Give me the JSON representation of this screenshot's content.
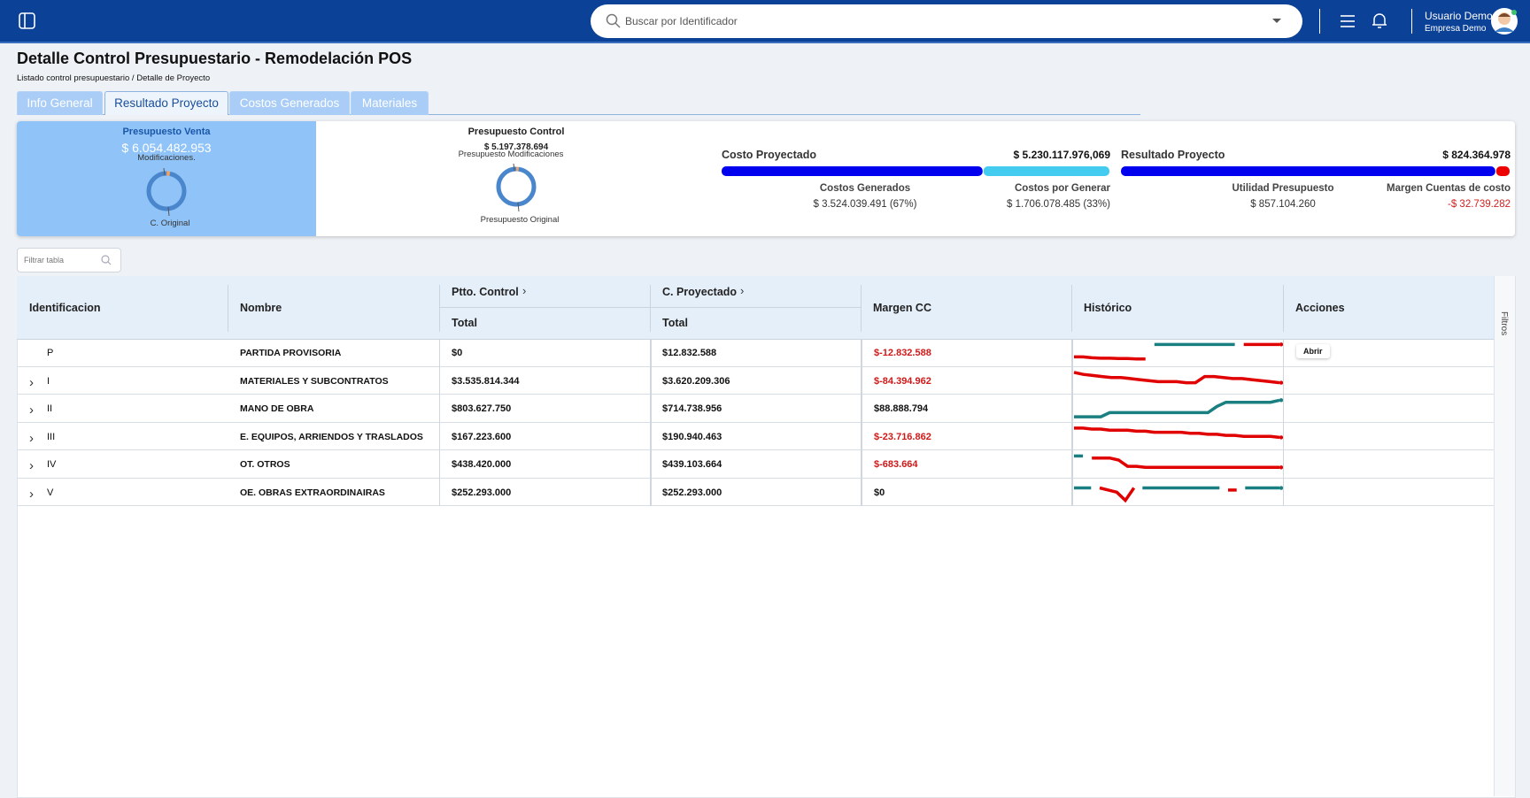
{
  "header": {
    "search_placeholder": "Buscar por Identificador",
    "user_name": "Usuario Demo",
    "company": "Empresa Demo"
  },
  "page": {
    "title": "Detalle Control Presupuestario - Remodelación POS",
    "breadcrumb": [
      "Listado control presupuestario",
      "Detalle de Proyecto"
    ],
    "breadcrumb_separator": "/",
    "tabs": [
      "Info General",
      "Resultado Proyecto",
      "Costos Generados",
      "Materiales"
    ],
    "active_tab": 1
  },
  "summary": {
    "venta": {
      "title": "Presupuesto Venta",
      "amount": "$ 6.054.482.953",
      "donut": [
        {
          "label": "Modificaciones.",
          "value": 3,
          "color": "#f0a060"
        },
        {
          "label": "C. Original",
          "value": 97,
          "color": "#4a86cc"
        }
      ]
    },
    "control": {
      "title": "Presupuesto Control",
      "amount": "$ 5.197.378.694",
      "donut": [
        {
          "label": "Presupuesto Modificaciones",
          "value": 2,
          "color": "#f0a060"
        },
        {
          "label": "Presupuesto Original",
          "value": 98,
          "color": "#4a86cc"
        }
      ]
    },
    "costo": {
      "title": "Costo Proyectado",
      "total": "$ 5.230.117.976,069",
      "segments": [
        {
          "label": "Costos Generados",
          "text": "$ 3.524.039.491 (67%)",
          "value": 3524039491,
          "color": "#0000ee"
        },
        {
          "label": "Costos por Generar",
          "text": "$ 1.706.078.485 (33%)",
          "value": 1706078485,
          "color": "#44ccf0"
        }
      ]
    },
    "resultado": {
      "title": "Resultado Proyecto",
      "total": "$ 824.364.978",
      "segments": [
        {
          "label": "Utilidad Presupuesto",
          "text": "$ 857.104.260",
          "value": 857104260,
          "color": "#0000ee"
        },
        {
          "label": "Margen Cuentas de costo",
          "text": "-$ 32.739.282",
          "value": -32739282,
          "color": "#ee0000",
          "text_color": "#d42020"
        }
      ]
    }
  },
  "filter": {
    "placeholder": "Filtrar tabla"
  },
  "table": {
    "columns": [
      "Identificacion",
      "Nombre",
      "Ptto. Control",
      "C. Proyectado",
      "Margen CC",
      "Histórico",
      "Acciones"
    ],
    "subcolumns": [
      "Total",
      "Total"
    ],
    "side_label": "Filtros",
    "rows": [
      {
        "id": "P",
        "name": "PARTIDA PROVISORIA",
        "ptto": "$0",
        "proyectado": "$12.832.588",
        "margen": "$-12.832.588",
        "negative": true,
        "expandable": false,
        "action": "Abrir",
        "historico": [
          {
            "color": "#e00000",
            "values": [
              3,
              3,
              2.6,
              2.4,
              2.4,
              2.2,
              2.2,
              2,
              2
            ]
          },
          {
            "color": "#1a7f80",
            "values": [
              9,
              9,
              9,
              9,
              9,
              9,
              9,
              9,
              9,
              9
            ]
          },
          {
            "color": "#e00000",
            "values": [
              9,
              9,
              9,
              9,
              9
            ]
          }
        ]
      },
      {
        "id": "I",
        "name": "MATERIALES Y SUBCONTRATOS",
        "ptto": "$3.535.814.344",
        "proyectado": "$3.620.209.306",
        "margen": "$-84.394.962",
        "negative": true,
        "expandable": true,
        "historico": [
          {
            "color": "#e00000",
            "values": [
              9,
              8,
              7.5,
              7,
              6.5,
              6.5,
              6,
              5.5,
              5,
              4.5,
              4.5,
              4.5,
              4,
              4,
              7,
              7,
              6.5,
              6,
              6,
              5.5,
              5,
              4.5,
              4
            ]
          }
        ]
      },
      {
        "id": "II",
        "name": "MANO DE OBRA",
        "ptto": "$803.627.750",
        "proyectado": "$714.738.956",
        "margen": "$88.888.794",
        "negative": false,
        "expandable": true,
        "historico": [
          {
            "color": "#1a7f80",
            "values": [
              1,
              1,
              1,
              1,
              3,
              3,
              3,
              3,
              3,
              3,
              3,
              3,
              3,
              3,
              3,
              3,
              6,
              8,
              8,
              8,
              8,
              8,
              8,
              9
            ]
          }
        ]
      },
      {
        "id": "III",
        "name": "E. EQUIPOS, ARRIENDOS Y TRASLADOS",
        "ptto": "$167.223.600",
        "proyectado": "$190.940.463",
        "margen": "$-23.716.862",
        "negative": true,
        "expandable": true,
        "historico": [
          {
            "color": "#e00000",
            "values": [
              9,
              9,
              8.5,
              8.5,
              8,
              8,
              8,
              7.5,
              7.5,
              7,
              7,
              7,
              7,
              6.5,
              6.5,
              6,
              6,
              5.5,
              5.5,
              5,
              5,
              5,
              5,
              4.5
            ]
          }
        ]
      },
      {
        "id": "IV",
        "name": "OT. OTROS",
        "ptto": "$438.420.000",
        "proyectado": "$439.103.664",
        "margen": "$-683.664",
        "negative": true,
        "expandable": true,
        "historico": [
          {
            "color": "#1a7f80",
            "values": [
              9,
              9
            ]
          },
          {
            "color": "#e00000",
            "values": [
              8,
              8,
              8,
              7,
              4,
              4,
              3.5,
              3.5,
              3.5,
              3.5,
              3.5,
              3.5,
              3.5,
              3.5,
              3.5,
              3.5,
              3.5,
              3.5,
              3.5,
              3.5,
              3.5,
              3.5
            ]
          }
        ]
      },
      {
        "id": "V",
        "name": "OE. OBRAS EXTRAORDINAIRAS",
        "ptto": "$252.293.000",
        "proyectado": "$252.293.000",
        "margen": "$0",
        "negative": false,
        "expandable": true,
        "historico": [
          {
            "color": "#1a7f80",
            "values": [
              7,
              7,
              7
            ]
          },
          {
            "color": "#e00000",
            "values": [
              7,
              6,
              5,
              1,
              7
            ]
          },
          {
            "color": "#1a7f80",
            "values": [
              7,
              7,
              7,
              7,
              7,
              7,
              7,
              7,
              7,
              7
            ]
          },
          {
            "color": "#e00000",
            "values": [
              6,
              6
            ]
          },
          {
            "color": "#1a7f80",
            "values": [
              7,
              7,
              7,
              7,
              7
            ]
          }
        ]
      }
    ]
  }
}
